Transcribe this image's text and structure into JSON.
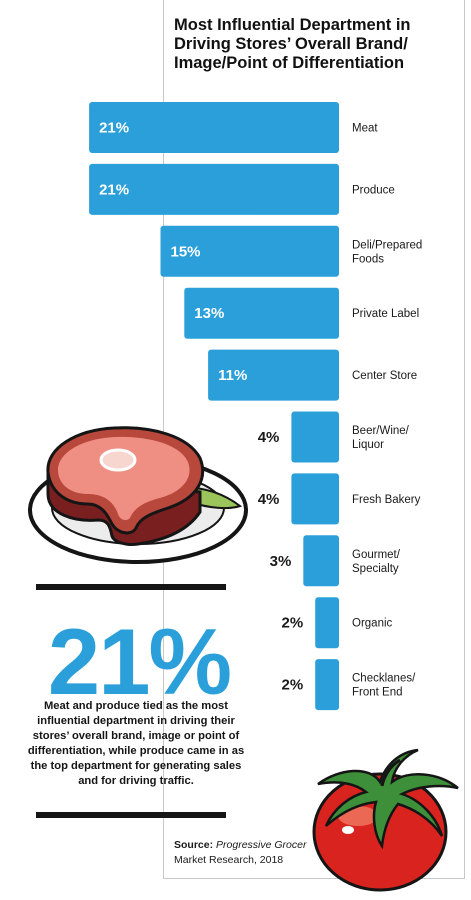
{
  "title_lines": [
    "Most Influential Department in",
    "Driving Stores’ Overall Brand/",
    "Image/Point of Differentiation"
  ],
  "colors": {
    "bar": "#2b9fd9",
    "accent": "#2b9fd9",
    "text": "#111111"
  },
  "chart_data": {
    "type": "bar",
    "orientation": "horizontal",
    "title": "Most Influential Department in Driving Stores’ Overall Brand/Image/Point of Differentiation",
    "categories": [
      [
        "Meat"
      ],
      [
        "Produce"
      ],
      [
        "Deli/Prepared",
        "Foods"
      ],
      [
        "Private Label"
      ],
      [
        "Center Store"
      ],
      [
        "Beer/Wine/",
        "Liquor"
      ],
      [
        "Fresh Bakery"
      ],
      [
        "Gourmet/",
        "Specialty"
      ],
      [
        "Organic"
      ],
      [
        "Checklanes/",
        "Front End"
      ]
    ],
    "values": [
      21,
      21,
      15,
      13,
      11,
      4,
      4,
      3,
      2,
      2
    ],
    "value_labels": [
      "21%",
      "21%",
      "15%",
      "13%",
      "11%",
      "4%",
      "4%",
      "3%",
      "2%",
      "2%"
    ],
    "unit": "%",
    "grid": false,
    "legend": "none"
  },
  "callout": {
    "stat": "21%",
    "text": "Meat and produce tied as the most influential department in driving their stores’ overall brand, image or point of differentiation, while produce came in as the top department for generating sales and for driving traffic."
  },
  "source": {
    "label": "Source:",
    "publisher": "Progressive Grocer",
    "rest": "Market Research, 2018"
  },
  "illustrations": {
    "top": "steak-on-plate-icon",
    "bottom": "tomato-icon"
  }
}
